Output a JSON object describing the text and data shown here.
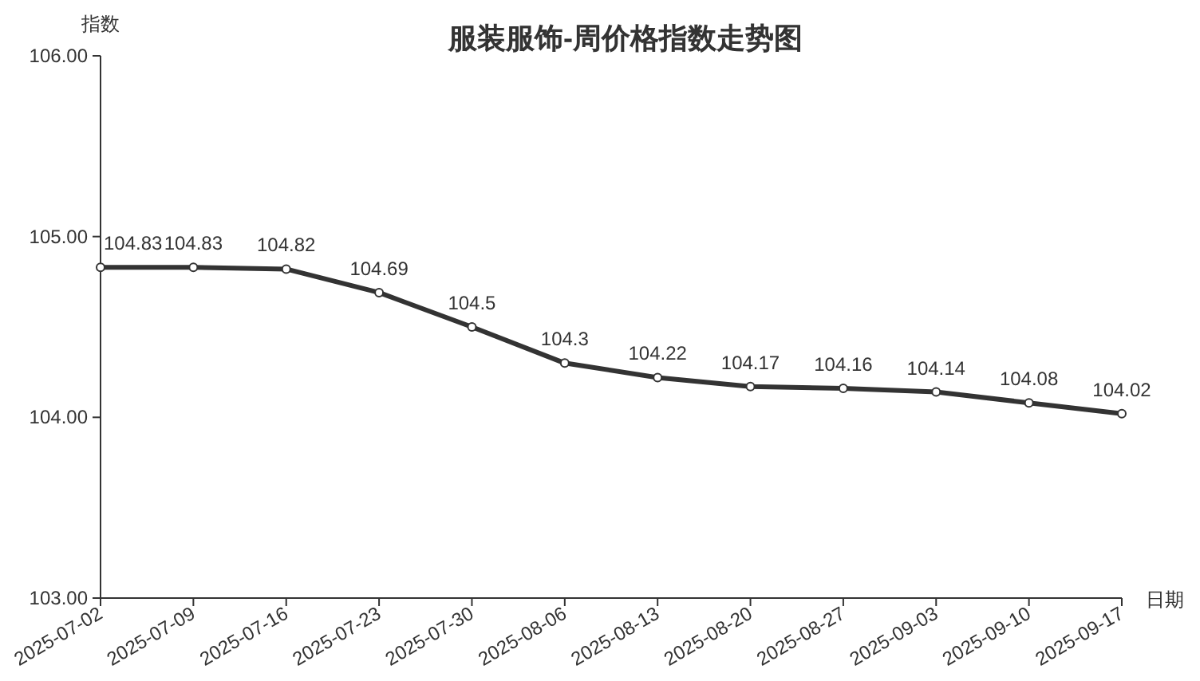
{
  "chart_data": {
    "type": "line",
    "title": "服装服饰-周价格指数走势图",
    "xlabel": "日期",
    "ylabel": "指数",
    "categories": [
      "2025-07-02",
      "2025-07-09",
      "2025-07-16",
      "2025-07-23",
      "2025-07-30",
      "2025-08-06",
      "2025-08-13",
      "2025-08-20",
      "2025-08-27",
      "2025-09-03",
      "2025-09-10",
      "2025-09-17"
    ],
    "series": [
      {
        "color": "#333333",
        "values": [
          104.83,
          104.83,
          104.82,
          104.69,
          104.5,
          104.3,
          104.22,
          104.17,
          104.16,
          104.14,
          104.08,
          104.02
        ]
      }
    ],
    "ylim": [
      103,
      106
    ],
    "yticks": [
      {
        "value": 103,
        "label": "103.00"
      },
      {
        "value": 104,
        "label": "104.00"
      },
      {
        "value": 105,
        "label": "105.00"
      },
      {
        "value": 106,
        "label": "106.00"
      }
    ],
    "data_labels": true,
    "marker": "circle",
    "line_style": "solid"
  }
}
